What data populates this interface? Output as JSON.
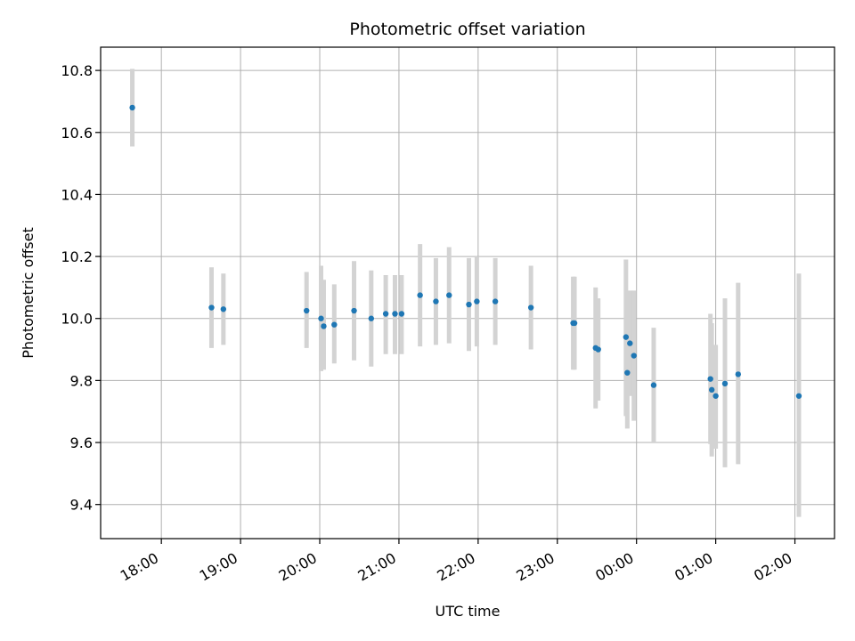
{
  "chart_data": {
    "type": "scatter",
    "title": "Photometric offset variation",
    "xlabel": "UTC time",
    "ylabel": "Photometric offset",
    "x_ticks": [
      "18:00",
      "19:00",
      "20:00",
      "21:00",
      "22:00",
      "23:00",
      "00:00",
      "01:00",
      "02:00"
    ],
    "y_ticks": [
      "9.4",
      "9.6",
      "9.8",
      "10.0",
      "10.2",
      "10.4",
      "10.6",
      "10.8"
    ],
    "xlim": [
      "17:14",
      "02:30"
    ],
    "ylim": [
      9.29,
      10.875
    ],
    "grid": true,
    "colors": {
      "points": "#1f77b4",
      "errorbars": "#d3d3d3",
      "grid": "#b0b0b0"
    },
    "points": [
      {
        "time": "17:38",
        "y": 10.68,
        "err_low": 10.555,
        "err_high": 10.805
      },
      {
        "time": "18:38",
        "y": 10.035,
        "err_low": 9.905,
        "err_high": 10.165
      },
      {
        "time": "18:47",
        "y": 10.03,
        "err_low": 9.915,
        "err_high": 10.145
      },
      {
        "time": "19:50",
        "y": 10.025,
        "err_low": 9.905,
        "err_high": 10.15
      },
      {
        "time": "20:01",
        "y": 10.0,
        "err_low": 9.83,
        "err_high": 10.17
      },
      {
        "time": "20:03",
        "y": 9.975,
        "err_low": 9.835,
        "err_high": 10.125
      },
      {
        "time": "20:11",
        "y": 9.98,
        "err_low": 9.855,
        "err_high": 10.11
      },
      {
        "time": "20:26",
        "y": 10.025,
        "err_low": 9.865,
        "err_high": 10.185
      },
      {
        "time": "20:39",
        "y": 10.0,
        "err_low": 9.845,
        "err_high": 10.155
      },
      {
        "time": "20:50",
        "y": 10.015,
        "err_low": 9.885,
        "err_high": 10.14
      },
      {
        "time": "20:57",
        "y": 10.015,
        "err_low": 9.885,
        "err_high": 10.14
      },
      {
        "time": "21:02",
        "y": 10.015,
        "err_low": 9.885,
        "err_high": 10.14
      },
      {
        "time": "21:16",
        "y": 10.075,
        "err_low": 9.91,
        "err_high": 10.24
      },
      {
        "time": "21:28",
        "y": 10.055,
        "err_low": 9.915,
        "err_high": 10.195
      },
      {
        "time": "21:38",
        "y": 10.075,
        "err_low": 9.92,
        "err_high": 10.23
      },
      {
        "time": "21:53",
        "y": 10.045,
        "err_low": 9.895,
        "err_high": 10.195
      },
      {
        "time": "21:59",
        "y": 10.055,
        "err_low": 9.91,
        "err_high": 10.2
      },
      {
        "time": "22:13",
        "y": 10.055,
        "err_low": 9.915,
        "err_high": 10.195
      },
      {
        "time": "22:40",
        "y": 10.035,
        "err_low": 9.9,
        "err_high": 10.17
      },
      {
        "time": "23:12",
        "y": 9.985,
        "err_low": 9.835,
        "err_high": 10.135
      },
      {
        "time": "23:13",
        "y": 9.985,
        "err_low": 9.835,
        "err_high": 10.135
      },
      {
        "time": "23:29",
        "y": 9.905,
        "err_low": 9.71,
        "err_high": 10.1
      },
      {
        "time": "23:31",
        "y": 9.9,
        "err_low": 9.735,
        "err_high": 10.065
      },
      {
        "time": "23:52",
        "y": 9.94,
        "err_low": 9.685,
        "err_high": 10.19
      },
      {
        "time": "23:53",
        "y": 9.825,
        "err_low": 9.645,
        "err_high": 10.005
      },
      {
        "time": "23:55",
        "y": 9.92,
        "err_low": 9.75,
        "err_high": 10.09
      },
      {
        "time": "23:58",
        "y": 9.88,
        "err_low": 9.67,
        "err_high": 10.09
      },
      {
        "time": "00:13",
        "y": 9.785,
        "err_low": 9.6,
        "err_high": 9.97
      },
      {
        "time": "00:56",
        "y": 9.805,
        "err_low": 9.595,
        "err_high": 10.015
      },
      {
        "time": "00:57",
        "y": 9.77,
        "err_low": 9.555,
        "err_high": 9.985
      },
      {
        "time": "01:00",
        "y": 9.75,
        "err_low": 9.58,
        "err_high": 9.915
      },
      {
        "time": "01:07",
        "y": 9.79,
        "err_low": 9.52,
        "err_high": 10.065
      },
      {
        "time": "01:17",
        "y": 9.82,
        "err_low": 9.53,
        "err_high": 10.115
      },
      {
        "time": "02:03",
        "y": 9.75,
        "err_low": 9.36,
        "err_high": 10.145
      }
    ]
  }
}
